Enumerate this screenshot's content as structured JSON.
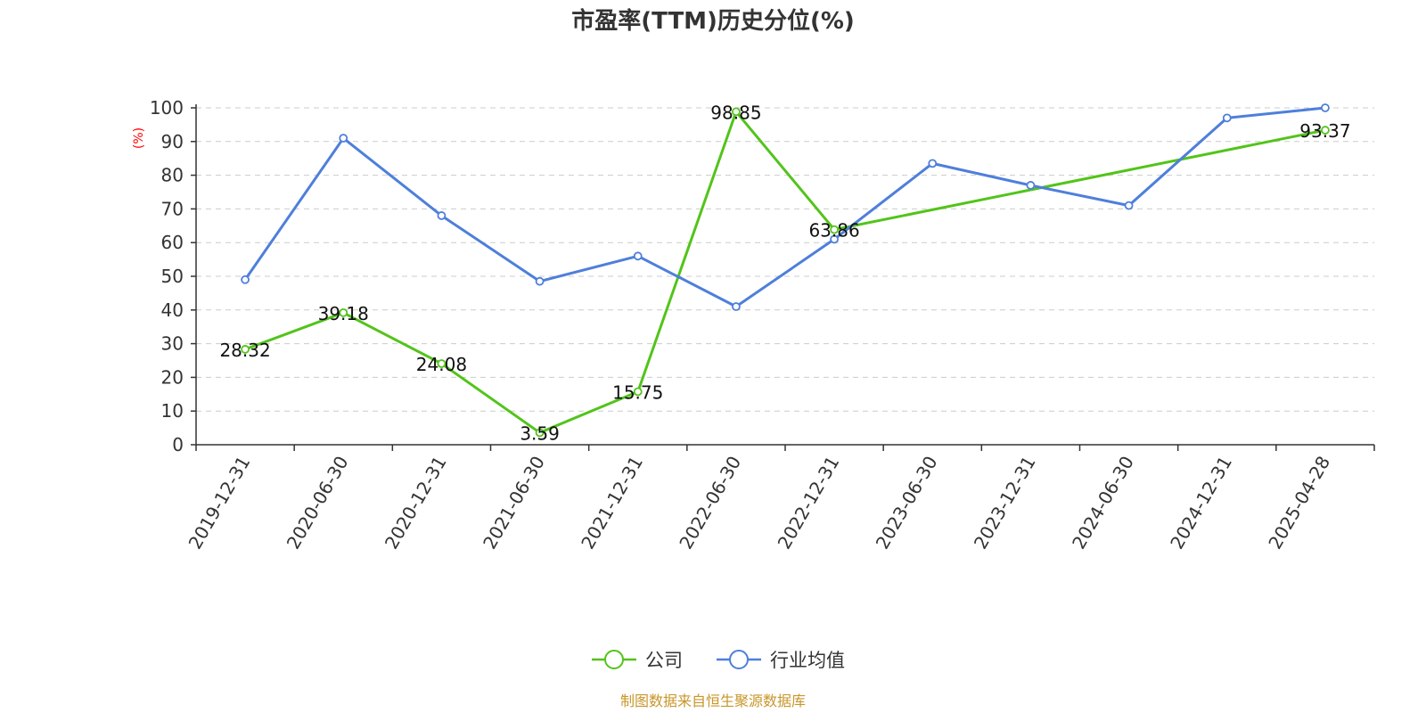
{
  "chart_data": {
    "type": "line",
    "title": "市盈率(TTM)历史分位(%)",
    "ylabel": "(%)",
    "ylim": [
      0,
      100
    ],
    "yticks": [
      0,
      10,
      20,
      30,
      40,
      50,
      60,
      70,
      80,
      90,
      100
    ],
    "grid": true,
    "legend_position": "bottom-center",
    "categories": [
      "2019-12-31",
      "2020-06-30",
      "2020-12-31",
      "2021-06-30",
      "2021-12-31",
      "2022-06-30",
      "2022-12-31",
      "2023-06-30",
      "2023-12-31",
      "2024-06-30",
      "2024-12-31",
      "2025-04-28"
    ],
    "series": [
      {
        "name": "公司",
        "color": "#52c41a",
        "values": [
          28.32,
          39.18,
          24.08,
          3.59,
          15.75,
          98.85,
          63.86,
          null,
          null,
          null,
          null,
          93.37
        ],
        "labels": [
          "28.32",
          "39.18",
          "24.08",
          "3.59",
          "15.75",
          "98.85",
          "63.86",
          null,
          null,
          null,
          null,
          "93.37"
        ]
      },
      {
        "name": "行业均值",
        "color": "#4e7fdb",
        "values": [
          49.0,
          91.0,
          68.0,
          48.5,
          56.0,
          41.0,
          61.0,
          83.5,
          77.0,
          71.0,
          97.0,
          100.0
        ]
      }
    ]
  },
  "source": "制图数据来自恒生聚源数据库"
}
